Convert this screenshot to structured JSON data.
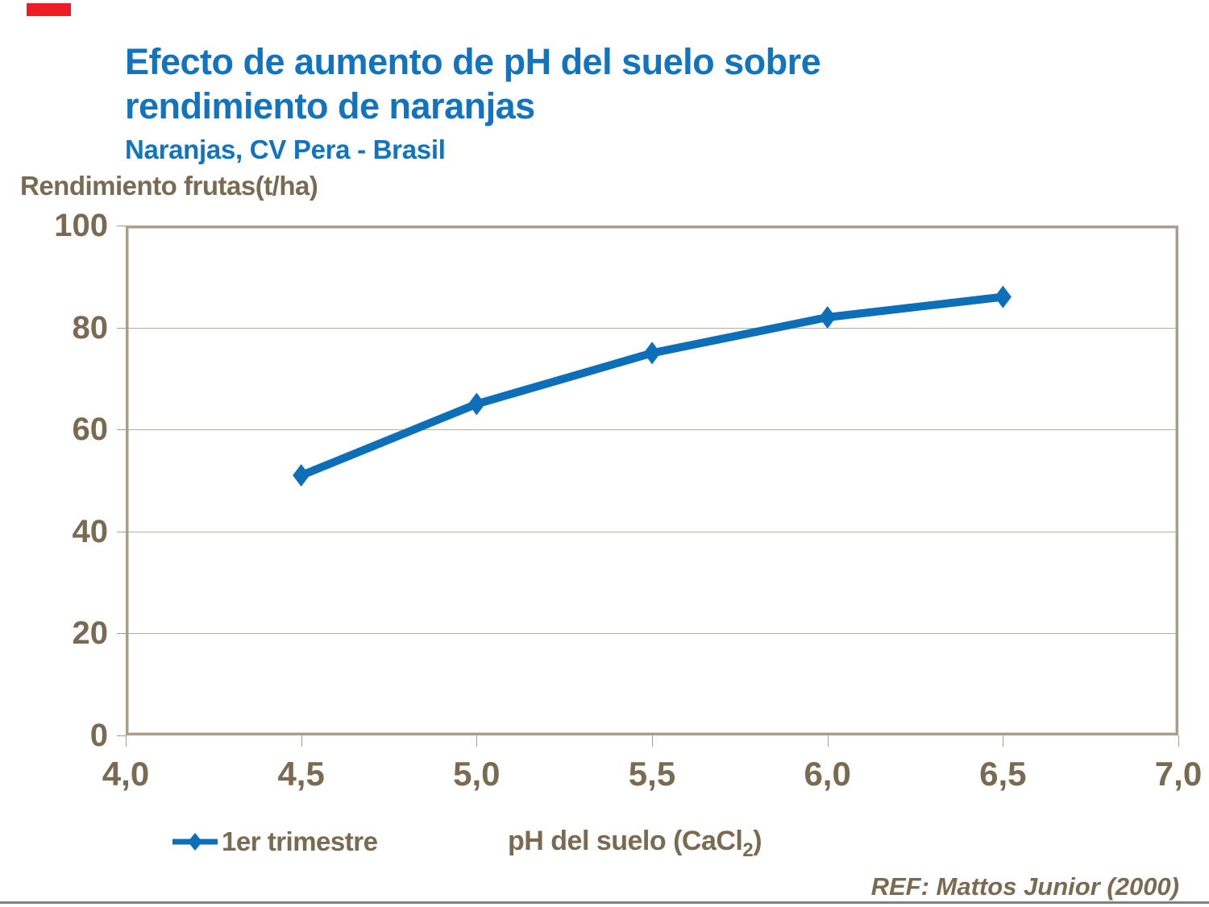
{
  "slide": {
    "title": "Efecto de aumento de pH del suelo sobre rendimiento de naranjas",
    "subtitle": "Naranjas, CV Pera - Brasil",
    "reference": "REF: Mattos Junior (2000)"
  },
  "chart_data": {
    "type": "line",
    "title": "Efecto de aumento de pH del suelo sobre rendimiento de naranjas",
    "subtitle": "Naranjas, CV Pera - Brasil",
    "x": [
      4.5,
      5.0,
      5.5,
      6.0,
      6.5
    ],
    "series": [
      {
        "name": "1er trimestre",
        "values": [
          51,
          65,
          75,
          82,
          86
        ]
      }
    ],
    "xlabel": {
      "pre": "pH del suelo (CaCl",
      "sub": "2",
      "post": ")"
    },
    "ylabel": "Rendimiento frutas(t/ha)",
    "xlim": [
      4.0,
      7.0
    ],
    "ylim": [
      0,
      100
    ],
    "x_tick_values": [
      4.0,
      4.5,
      5.0,
      5.5,
      6.0,
      6.5,
      7.0
    ],
    "x_tick_labels": [
      "4,0",
      "4,5",
      "5,0",
      "5,5",
      "6,0",
      "6,5",
      "7,0"
    ],
    "y_tick_values": [
      0,
      20,
      40,
      60,
      80,
      100
    ],
    "y_tick_labels": [
      "0",
      "20",
      "40",
      "60",
      "80",
      "100"
    ],
    "grid": "horizontal",
    "legend_position": "bottom-left",
    "marker": "diamond",
    "line_color": "#0d6fb8",
    "axis_color": "#ab9d8c",
    "grid_color": "#bcae9e",
    "text_color": "#7a6a52",
    "title_color": "#1273be"
  },
  "colors": {
    "accent_blue": "#1273be",
    "series_blue": "#0d6fb8",
    "axis_brown": "#7a6a52",
    "frame_tan": "#ab9d8c",
    "red_marker": "#ee1c25",
    "bottom_rule_gray": "#808080"
  }
}
